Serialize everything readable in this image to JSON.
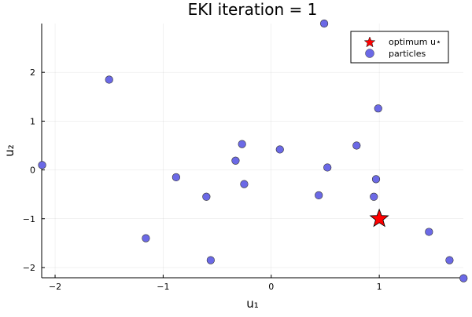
{
  "chart_data": {
    "type": "scatter",
    "title": "EKI iteration = 1",
    "xlabel": "u₁",
    "ylabel": "u₂",
    "xlim": [
      -2.124,
      1.778
    ],
    "ylim": [
      -2.21,
      3.0
    ],
    "xticks": [
      -2,
      -1,
      0,
      1
    ],
    "yticks": [
      -2,
      -1,
      0,
      1,
      2
    ],
    "grid": true,
    "legend_position": "top-right",
    "series": [
      {
        "name": "optimum u⋆",
        "marker": "star",
        "color": "#ff0000",
        "points": [
          [
            1,
            -1
          ]
        ]
      },
      {
        "name": "particles",
        "marker": "circle",
        "color": "#6b69e6",
        "points": [
          [
            -2.12,
            0.1
          ],
          [
            -1.5,
            1.85
          ],
          [
            -0.88,
            -0.15
          ],
          [
            -1.16,
            -1.4
          ],
          [
            -0.6,
            -0.55
          ],
          [
            -0.56,
            -1.85
          ],
          [
            -0.27,
            0.53
          ],
          [
            -0.33,
            0.19
          ],
          [
            -0.25,
            -0.29
          ],
          [
            0.08,
            0.42
          ],
          [
            0.49,
            3.0
          ],
          [
            0.52,
            0.05
          ],
          [
            0.44,
            -0.52
          ],
          [
            0.79,
            0.5
          ],
          [
            0.99,
            1.26
          ],
          [
            0.97,
            -0.19
          ],
          [
            0.95,
            -0.55
          ],
          [
            1.46,
            -1.27
          ],
          [
            1.65,
            -1.85
          ],
          [
            1.78,
            -2.22
          ]
        ]
      }
    ]
  }
}
